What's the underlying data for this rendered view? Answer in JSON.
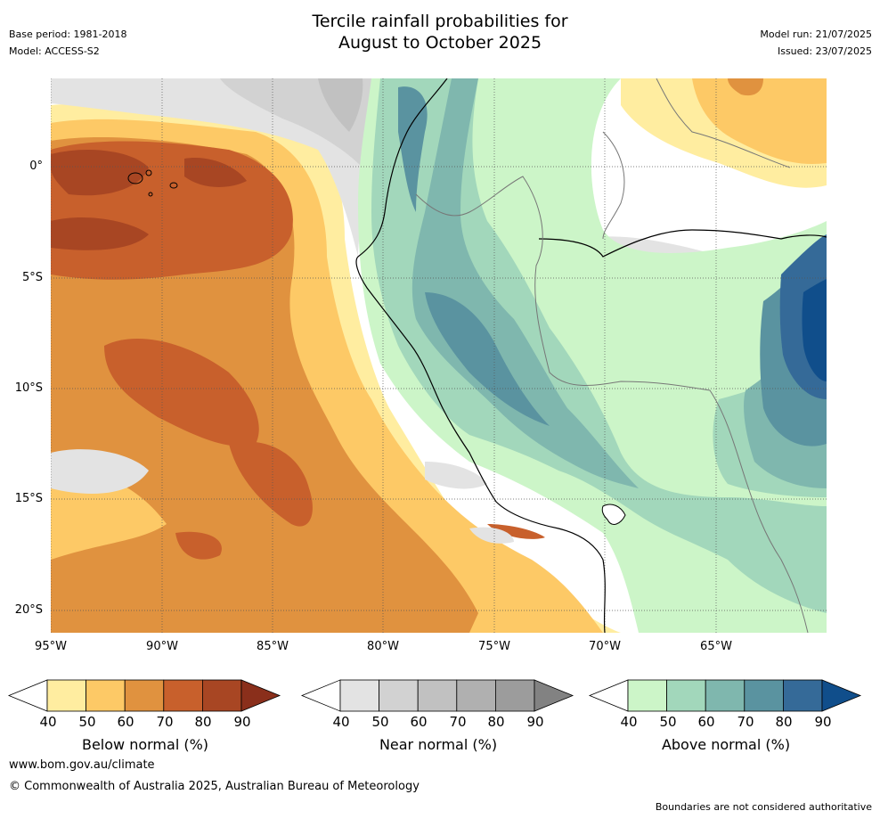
{
  "header": {
    "title_line1": "Tercile rainfall probabilities for",
    "title_line2": "August to October 2025",
    "base_period": "Base period: 1981-2018",
    "model": "Model: ACCESS-S2",
    "model_run": "Model run: 21/07/2025",
    "issued": "Issued: 23/07/2025"
  },
  "map": {
    "lat_labels": [
      "0°",
      "5°S",
      "10°S",
      "15°S",
      "20°S"
    ],
    "lon_labels": [
      "95°W",
      "90°W",
      "85°W",
      "80°W",
      "75°W",
      "70°W",
      "65°W"
    ]
  },
  "colorbars": [
    {
      "name": "below",
      "label": "Below normal (%)",
      "ticks": [
        "40",
        "50",
        "60",
        "70",
        "80",
        "90"
      ],
      "colors": [
        "#ffffff",
        "#ffeda0",
        "#fdc966",
        "#e0923f",
        "#c8602c",
        "#a84623",
        "#8a2f1b"
      ]
    },
    {
      "name": "near",
      "label": "Near normal (%)",
      "ticks": [
        "40",
        "50",
        "60",
        "70",
        "80",
        "90"
      ],
      "colors": [
        "#ffffff",
        "#e3e3e3",
        "#d2d2d2",
        "#c1c1c1",
        "#b0b0b0",
        "#9c9c9c",
        "#828282"
      ]
    },
    {
      "name": "above",
      "label": "Above normal (%)",
      "ticks": [
        "40",
        "50",
        "60",
        "70",
        "80",
        "90"
      ],
      "colors": [
        "#ffffff",
        "#ccf5c8",
        "#a2d7bb",
        "#7fb7ae",
        "#5a93a0",
        "#356a98",
        "#104e8b"
      ]
    }
  ],
  "footer": {
    "url": "www.bom.gov.au/climate",
    "copyright": "© Commonwealth of Australia 2025, Australian Bureau of Meteorology",
    "disclaimer": "Boundaries are not considered authoritative"
  }
}
